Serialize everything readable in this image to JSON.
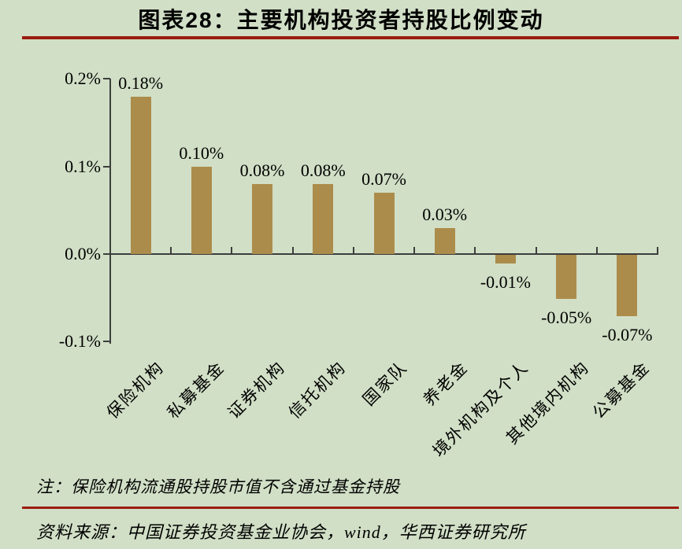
{
  "header": {
    "title": "图表28：主要机构投资者持股比例变动"
  },
  "footer": {
    "note": "注：保险机构流通股持股市值不含通过基金持股",
    "source": "资料来源：中国证券投资基金业协会，wind，华西证券研究所"
  },
  "colors": {
    "background": "#d1dfc6",
    "bar": "#ac8c4b",
    "rule": "#9a1c0f",
    "axis": "#3d3d3d",
    "text": "#000000"
  },
  "chart_data": {
    "type": "bar",
    "title": "主要机构投资者持股比例变动",
    "categories": [
      "保险机构",
      "私募基金",
      "证券机构",
      "信托机构",
      "国家队",
      "养老金",
      "境外机构及个人",
      "其他境内机构",
      "公募基金"
    ],
    "values": [
      0.18,
      0.1,
      0.08,
      0.08,
      0.07,
      0.03,
      -0.01,
      -0.05,
      -0.07
    ],
    "value_labels": [
      "0.18%",
      "0.10%",
      "0.08%",
      "0.08%",
      "0.07%",
      "0.03%",
      "-0.01%",
      "-0.05%",
      "-0.07%"
    ],
    "unit": "%",
    "ylim": [
      -0.1,
      0.2
    ],
    "y_ticks": {
      "values": [
        0.2,
        0.1,
        0.0,
        -0.1
      ],
      "labels": [
        "0.2%",
        "0.1%",
        "0.0%",
        "-0.1%"
      ]
    },
    "xlabel": "",
    "ylabel": "",
    "grid": false,
    "legend": null
  }
}
